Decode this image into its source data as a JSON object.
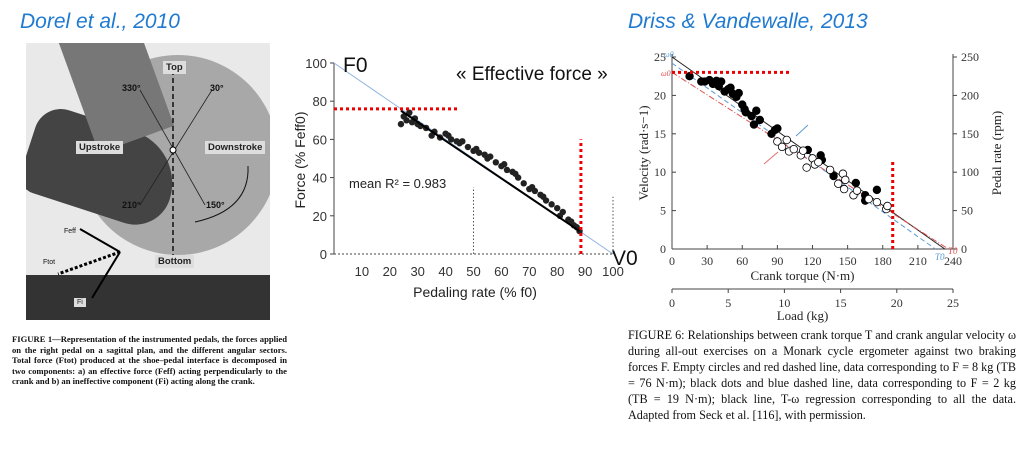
{
  "left_panel": {
    "title": "Dorel et al., 2010",
    "photo_labels": {
      "top": "Top",
      "a330": "330°",
      "a30": "30°",
      "upstroke": "Upstroke",
      "downstroke": "Downstroke",
      "a210": "210°",
      "a150": "150°",
      "bottom": "Bottom",
      "feff": "Feff",
      "ftot": "Ftot",
      "fi": "Fi"
    },
    "caption": "FIGURE 1—Representation of the instrumented pedals, the forces applied on the right pedal on a sagittal plan, and the different angular sectors. Total force (Ftot) produced at the shoe–pedal interface is decomposed in two components: a) an effective force (Feff) acting perpendicularly to the crank and b) an ineffective component (Fi) acting along the crank."
  },
  "right_panel": {
    "title": "Driss & Vandewalle, 2013",
    "caption": "FIGURE 6: Relationships between crank torque T and crank angular velocity ω during all-out exercises on a Monark cycle ergometer against two braking forces F. Empty circles and red dashed line, data corresponding to F = 8 kg (TB = 76 N·m); black dots and blue dashed line, data corresponding to F = 2 kg (TB = 19 N·m); black line, T-ω regression corresponding to all the data. Adapted from Seck et al. [116], with permission."
  },
  "chart_data": [
    {
      "type": "scatter",
      "title": "« Effective force »",
      "xlabel": "Pedaling rate (% f0)",
      "ylabel": "Force (% Feff0)",
      "xlim": [
        0,
        100
      ],
      "ylim": [
        0,
        100
      ],
      "xticks": [
        10,
        20,
        30,
        40,
        50,
        60,
        70,
        80,
        90,
        100
      ],
      "yticks": [
        0,
        20,
        40,
        60,
        80,
        100
      ],
      "annotations": {
        "f0": "F0",
        "v0": "V0",
        "r2": "mean R² = 0.983"
      },
      "regression": {
        "x": [
          0,
          100
        ],
        "y": [
          100,
          0
        ]
      },
      "points_x": [
        24,
        25,
        26,
        27,
        28,
        29,
        30,
        31,
        33,
        35,
        36,
        38,
        40,
        41,
        42,
        44,
        45,
        46,
        48,
        50,
        51,
        52,
        54,
        55,
        56,
        58,
        60,
        61,
        62,
        64,
        65,
        66,
        68,
        70,
        71,
        72,
        74,
        75,
        76,
        78,
        80,
        81,
        82,
        84,
        85,
        86,
        87,
        88
      ],
      "points_y": [
        68,
        72,
        70,
        74,
        69,
        71,
        68,
        67,
        66,
        62,
        64,
        61,
        63,
        62,
        60,
        59,
        58,
        59,
        56,
        54,
        55,
        53,
        52,
        50,
        51,
        48,
        46,
        47,
        44,
        43,
        42,
        40,
        37,
        34,
        35,
        33,
        31,
        30,
        28,
        26,
        24,
        20,
        22,
        18,
        17,
        15,
        14,
        12
      ],
      "red_markers": {
        "horizontal_y": 76,
        "horizontal_x": [
          0,
          45
        ],
        "vertical_x": 88.5,
        "vertical_y": [
          0,
          60
        ]
      },
      "gray_markers_x": [
        50,
        100
      ]
    },
    {
      "type": "scatter",
      "xlabel": "Crank torque (N·m)",
      "ylabel": "Velocity (rad·s−1)",
      "y2label": "Pedal rate (rpm)",
      "x2label": "Load (kg)",
      "xlim": [
        0,
        240
      ],
      "ylim": [
        0,
        25
      ],
      "y2lim": [
        0,
        250
      ],
      "x2lim": [
        0,
        25
      ],
      "xticks": [
        0,
        30,
        60,
        90,
        120,
        150,
        180,
        210,
        240
      ],
      "yticks": [
        0,
        5,
        10,
        15,
        20,
        25
      ],
      "y2ticks": [
        0,
        50,
        100,
        150,
        200,
        250
      ],
      "x2ticks": [
        0,
        5,
        10,
        15,
        20,
        25
      ],
      "annotations": {
        "omega0_blue": "ω0",
        "omega0_red": "ω0",
        "t0_blue": "T0",
        "t0_red": "T0"
      },
      "series": [
        {
          "name": "F = 2 kg",
          "marker": "filled",
          "x": [
            15,
            25,
            28,
            32,
            35,
            38,
            40,
            42,
            45,
            48,
            50,
            52,
            55,
            57,
            60,
            62,
            63,
            68,
            70,
            72,
            75,
            85,
            88,
            90,
            116,
            127,
            128,
            138,
            157,
            165,
            165,
            175
          ],
          "y": [
            22.5,
            21.8,
            21.8,
            22,
            21.5,
            21.9,
            21.2,
            21.8,
            20.5,
            20.8,
            21,
            20.2,
            19.8,
            20.3,
            18.8,
            18.2,
            17.8,
            17.3,
            16.2,
            18,
            16.8,
            15,
            15.5,
            15.7,
            12.9,
            12.2,
            11.6,
            9.5,
            8.6,
            7,
            6.3,
            7.7
          ]
        },
        {
          "name": "F = 8 kg",
          "marker": "open",
          "x": [
            90,
            94,
            98,
            100,
            104,
            110,
            112,
            115,
            120,
            122,
            125,
            135,
            142,
            146,
            147,
            148,
            155,
            158,
            168,
            175,
            183,
            184
          ],
          "y": [
            14,
            13.3,
            14.2,
            12.7,
            13,
            12.2,
            12.8,
            10.6,
            11.8,
            11,
            11.3,
            10.3,
            8.5,
            9.8,
            7.8,
            9,
            7,
            7.6,
            6.5,
            6.1,
            5.2,
            5.6
          ]
        }
      ],
      "lines": [
        {
          "style": "solid",
          "color": "#222222",
          "x": [
            0,
            233
          ],
          "y": [
            25,
            0
          ]
        },
        {
          "style": "dashed",
          "color": "#5b9bd5",
          "x": [
            0,
            225
          ],
          "y": [
            24.2,
            0
          ]
        },
        {
          "style": "dashdot",
          "color": "#e05050",
          "x": [
            0,
            236
          ],
          "y": [
            23,
            0
          ]
        }
      ],
      "red_markers": {
        "horizontal_y": 23,
        "horizontal_x": [
          0,
          101
        ],
        "vertical_x": 188.5,
        "vertical_y": [
          0,
          11.5
        ]
      }
    }
  ]
}
